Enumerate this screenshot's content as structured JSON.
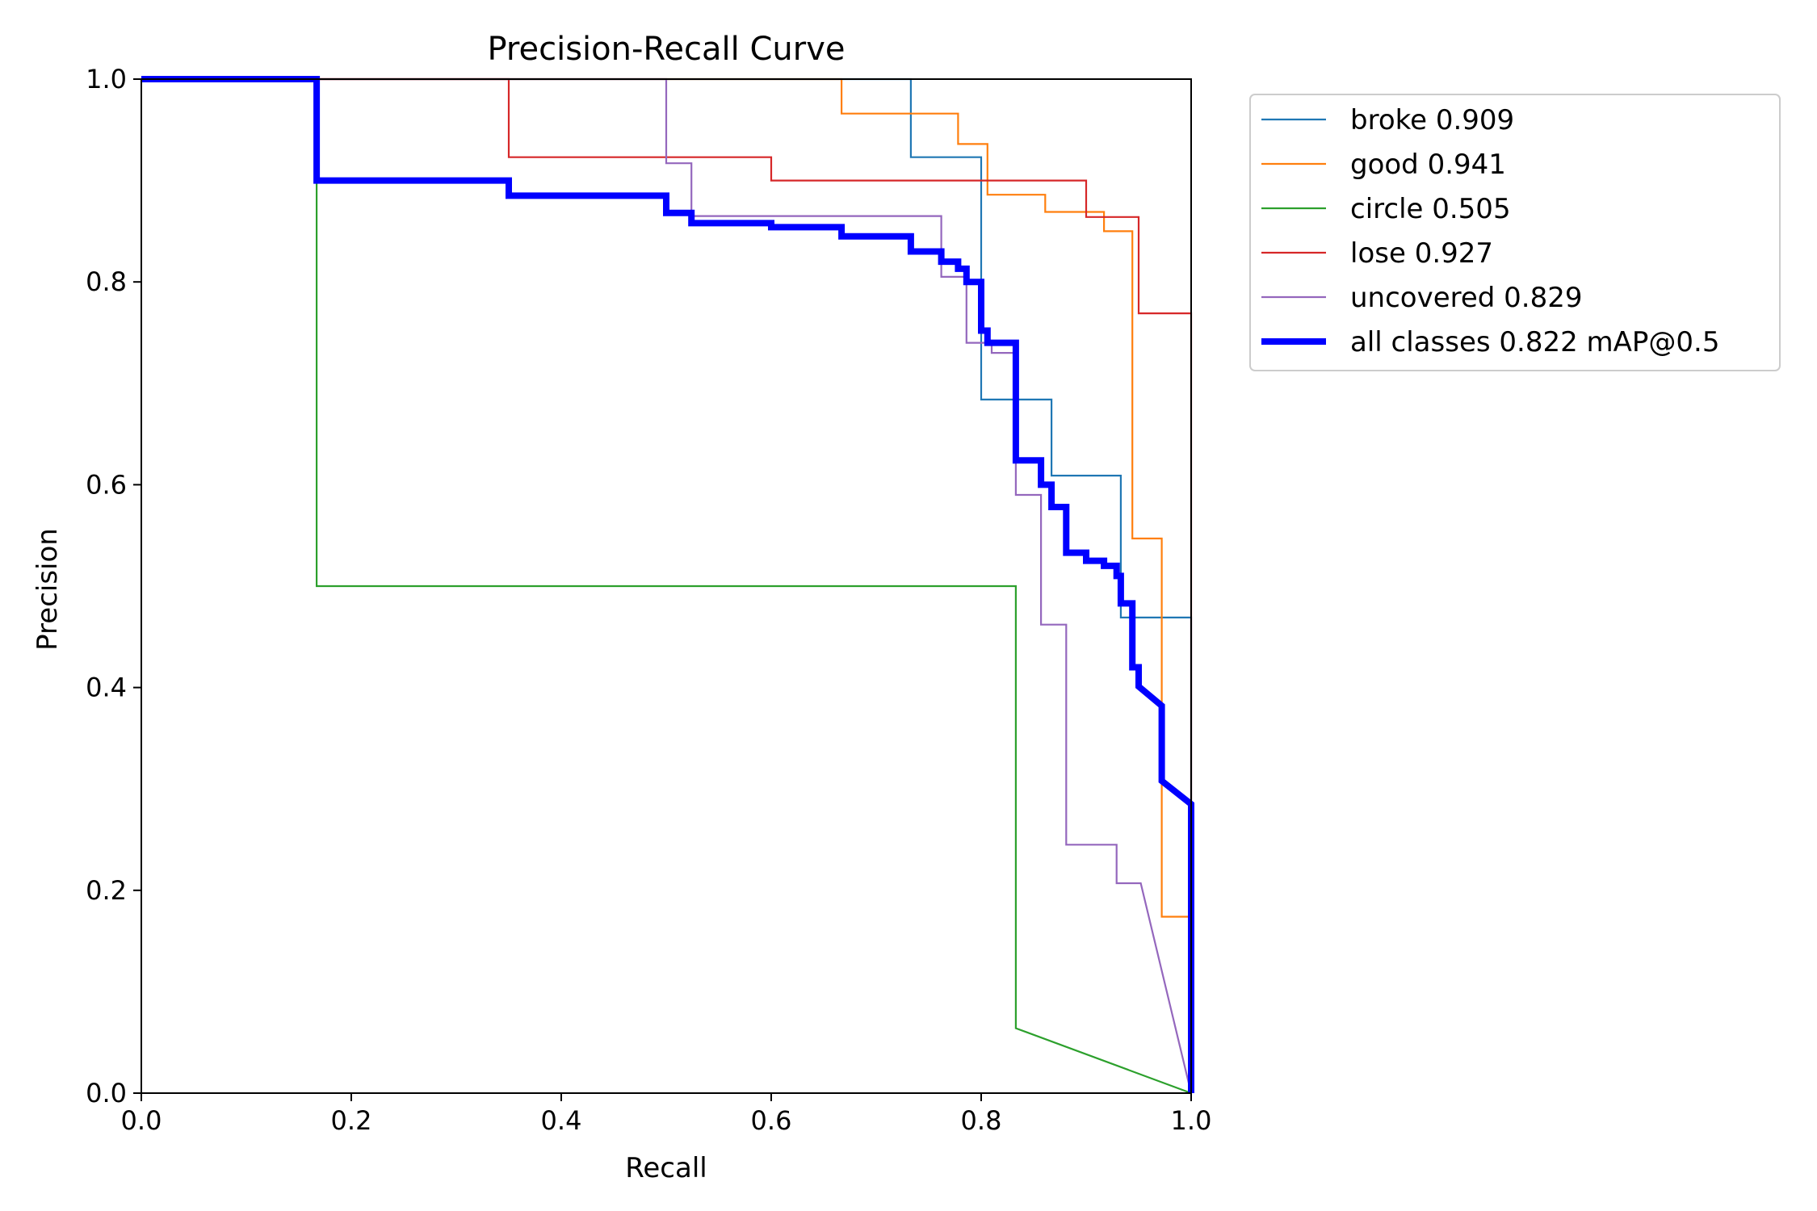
{
  "chart_data": {
    "type": "line",
    "title": "Precision-Recall Curve",
    "xlabel": "Recall",
    "ylabel": "Precision",
    "xlim": [
      0,
      1
    ],
    "ylim": [
      0,
      1
    ],
    "grid": false,
    "legend_position": "outside-top-right",
    "x_ticks": [
      {
        "value": 0.0,
        "label": "0.0"
      },
      {
        "value": 0.2,
        "label": "0.2"
      },
      {
        "value": 0.4,
        "label": "0.4"
      },
      {
        "value": 0.6,
        "label": "0.6"
      },
      {
        "value": 0.8,
        "label": "0.8"
      },
      {
        "value": 1.0,
        "label": "1.0"
      }
    ],
    "y_ticks": [
      {
        "value": 0.0,
        "label": "0.0"
      },
      {
        "value": 0.2,
        "label": "0.2"
      },
      {
        "value": 0.4,
        "label": "0.4"
      },
      {
        "value": 0.6,
        "label": "0.6"
      },
      {
        "value": 0.8,
        "label": "0.8"
      },
      {
        "value": 1.0,
        "label": "1.0"
      }
    ],
    "series": [
      {
        "name": "broke",
        "label": "broke 0.909",
        "color": "#1f77b4",
        "emphasis": "thin",
        "points": [
          [
            0,
            1
          ],
          [
            0.733,
            1
          ],
          [
            0.733,
            0.923
          ],
          [
            0.8,
            0.923
          ],
          [
            0.8,
            0.684
          ],
          [
            0.867,
            0.684
          ],
          [
            0.867,
            0.609
          ],
          [
            0.933,
            0.609
          ],
          [
            0.933,
            0.469
          ],
          [
            1.0,
            0.469
          ],
          [
            1.0,
            0
          ]
        ]
      },
      {
        "name": "good",
        "label": "good 0.941",
        "color": "#ff7f0e",
        "emphasis": "thin",
        "points": [
          [
            0,
            1
          ],
          [
            0.667,
            1
          ],
          [
            0.667,
            0.966
          ],
          [
            0.778,
            0.966
          ],
          [
            0.778,
            0.936
          ],
          [
            0.806,
            0.936
          ],
          [
            0.806,
            0.886
          ],
          [
            0.861,
            0.886
          ],
          [
            0.861,
            0.869
          ],
          [
            0.917,
            0.869
          ],
          [
            0.917,
            0.85
          ],
          [
            0.944,
            0.85
          ],
          [
            0.944,
            0.547
          ],
          [
            0.972,
            0.547
          ],
          [
            0.972,
            0.174
          ],
          [
            1.0,
            0.174
          ],
          [
            1.0,
            0
          ]
        ]
      },
      {
        "name": "circle",
        "label": "circle 0.505",
        "color": "#2ca02c",
        "emphasis": "thin",
        "points": [
          [
            0,
            1
          ],
          [
            0.167,
            1
          ],
          [
            0.167,
            0.5
          ],
          [
            0.833,
            0.5
          ],
          [
            0.833,
            0.064
          ],
          [
            1.0,
            0
          ]
        ]
      },
      {
        "name": "lose",
        "label": "lose 0.927",
        "color": "#d62728",
        "emphasis": "thin",
        "points": [
          [
            0,
            1
          ],
          [
            0.35,
            1
          ],
          [
            0.35,
            0.923
          ],
          [
            0.6,
            0.923
          ],
          [
            0.6,
            0.9
          ],
          [
            0.9,
            0.9
          ],
          [
            0.9,
            0.864
          ],
          [
            0.95,
            0.864
          ],
          [
            0.95,
            0.769
          ],
          [
            1.0,
            0.769
          ],
          [
            1.0,
            0
          ]
        ]
      },
      {
        "name": "uncovered",
        "label": "uncovered 0.829",
        "color": "#9467bd",
        "emphasis": "thin",
        "points": [
          [
            0,
            1
          ],
          [
            0.5,
            1
          ],
          [
            0.5,
            0.917
          ],
          [
            0.524,
            0.917
          ],
          [
            0.524,
            0.865
          ],
          [
            0.762,
            0.865
          ],
          [
            0.762,
            0.805
          ],
          [
            0.786,
            0.805
          ],
          [
            0.786,
            0.74
          ],
          [
            0.81,
            0.74
          ],
          [
            0.81,
            0.73
          ],
          [
            0.833,
            0.73
          ],
          [
            0.833,
            0.59
          ],
          [
            0.857,
            0.59
          ],
          [
            0.857,
            0.462
          ],
          [
            0.881,
            0.462
          ],
          [
            0.881,
            0.245
          ],
          [
            0.929,
            0.245
          ],
          [
            0.929,
            0.207
          ],
          [
            0.952,
            0.207
          ],
          [
            1.0,
            0
          ]
        ]
      },
      {
        "name": "all classes",
        "label": "all classes 0.822 mAP@0.5",
        "color": "#0000ff",
        "emphasis": "thick",
        "points": [
          [
            0,
            1
          ],
          [
            0.167,
            1
          ],
          [
            0.167,
            0.9
          ],
          [
            0.35,
            0.9
          ],
          [
            0.35,
            0.885
          ],
          [
            0.5,
            0.885
          ],
          [
            0.5,
            0.868
          ],
          [
            0.524,
            0.868
          ],
          [
            0.524,
            0.858
          ],
          [
            0.6,
            0.858
          ],
          [
            0.6,
            0.854
          ],
          [
            0.667,
            0.854
          ],
          [
            0.667,
            0.845
          ],
          [
            0.733,
            0.845
          ],
          [
            0.733,
            0.83
          ],
          [
            0.762,
            0.83
          ],
          [
            0.762,
            0.82
          ],
          [
            0.778,
            0.82
          ],
          [
            0.778,
            0.813
          ],
          [
            0.786,
            0.813
          ],
          [
            0.786,
            0.8
          ],
          [
            0.8,
            0.8
          ],
          [
            0.8,
            0.752
          ],
          [
            0.806,
            0.752
          ],
          [
            0.806,
            0.74
          ],
          [
            0.833,
            0.74
          ],
          [
            0.833,
            0.624
          ],
          [
            0.857,
            0.624
          ],
          [
            0.857,
            0.6
          ],
          [
            0.867,
            0.6
          ],
          [
            0.867,
            0.578
          ],
          [
            0.881,
            0.578
          ],
          [
            0.881,
            0.533
          ],
          [
            0.9,
            0.533
          ],
          [
            0.9,
            0.525
          ],
          [
            0.917,
            0.525
          ],
          [
            0.917,
            0.52
          ],
          [
            0.929,
            0.52
          ],
          [
            0.929,
            0.51
          ],
          [
            0.933,
            0.51
          ],
          [
            0.933,
            0.483
          ],
          [
            0.944,
            0.483
          ],
          [
            0.944,
            0.42
          ],
          [
            0.95,
            0.42
          ],
          [
            0.95,
            0.401
          ],
          [
            0.972,
            0.382
          ],
          [
            0.972,
            0.308
          ],
          [
            1.0,
            0.285
          ],
          [
            1.0,
            0
          ]
        ]
      }
    ]
  }
}
